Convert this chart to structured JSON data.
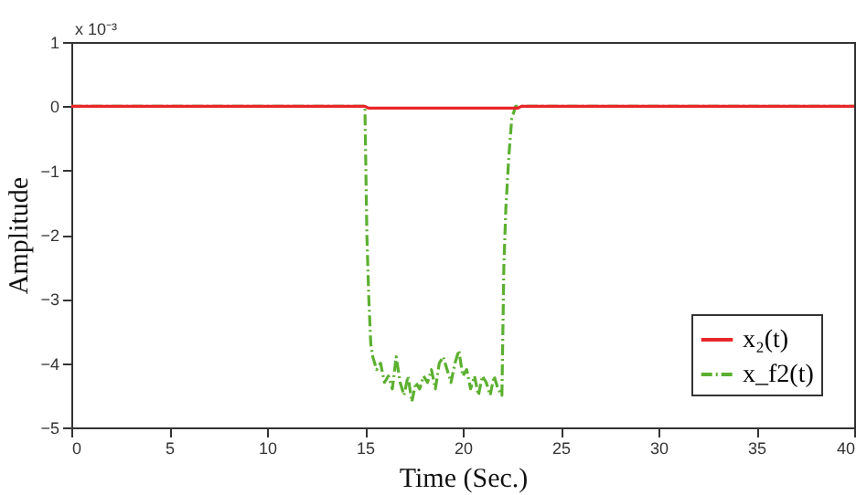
{
  "chart_data": {
    "type": "line",
    "xlabel": "Time (Sec.)",
    "ylabel": "Amplitude",
    "annotations": [
      "x 10⁻³"
    ],
    "xlim": [
      0,
      40
    ],
    "xticks": [
      0,
      5,
      10,
      15,
      20,
      25,
      30,
      35,
      40
    ],
    "ylim": [
      -5,
      1
    ],
    "yticks": [
      -5,
      -4,
      -3,
      -2,
      -1,
      0,
      1
    ],
    "grid": false,
    "legend": "bottom right",
    "marker": "none",
    "series": [
      {
        "name": "x₂(t)",
        "color": "#e8262a",
        "line_style": "solid",
        "x": [
          0,
          15,
          15.2,
          22.8,
          23,
          40
        ],
        "values": [
          0,
          0,
          -0.03,
          -0.03,
          0,
          0
        ]
      },
      {
        "name": "x_f2(t)",
        "color": "#5cb030",
        "line_style": "dashed",
        "x": [
          0,
          15,
          15.05,
          15.1,
          15.2,
          15.3,
          15.4,
          15.6,
          15.8,
          16.0,
          16.2,
          16.4,
          16.6,
          16.8,
          17.0,
          17.2,
          17.4,
          17.6,
          17.8,
          18.0,
          18.2,
          18.4,
          18.6,
          18.8,
          19.0,
          19.2,
          19.4,
          19.6,
          19.8,
          20.0,
          20.2,
          20.4,
          20.6,
          20.8,
          21.0,
          21.2,
          21.4,
          21.6,
          21.8,
          22.0,
          22.05,
          22.1,
          22.2,
          22.35,
          22.5,
          22.7,
          40
        ],
        "values": [
          0,
          0,
          -1,
          -2,
          -3,
          -3.7,
          -3.9,
          -4.1,
          -4.0,
          -4.3,
          -4.2,
          -4.4,
          -3.9,
          -4.3,
          -4.5,
          -4.2,
          -4.6,
          -4.3,
          -4.4,
          -4.2,
          -4.3,
          -4.1,
          -4.4,
          -4.0,
          -3.9,
          -4.1,
          -4.3,
          -4.0,
          -3.8,
          -4.2,
          -4.1,
          -4.4,
          -4.2,
          -4.5,
          -4.2,
          -4.3,
          -4.5,
          -4.2,
          -4.4,
          -4.5,
          -3.5,
          -2.5,
          -1.6,
          -0.8,
          -0.2,
          0,
          0
        ]
      }
    ]
  }
}
